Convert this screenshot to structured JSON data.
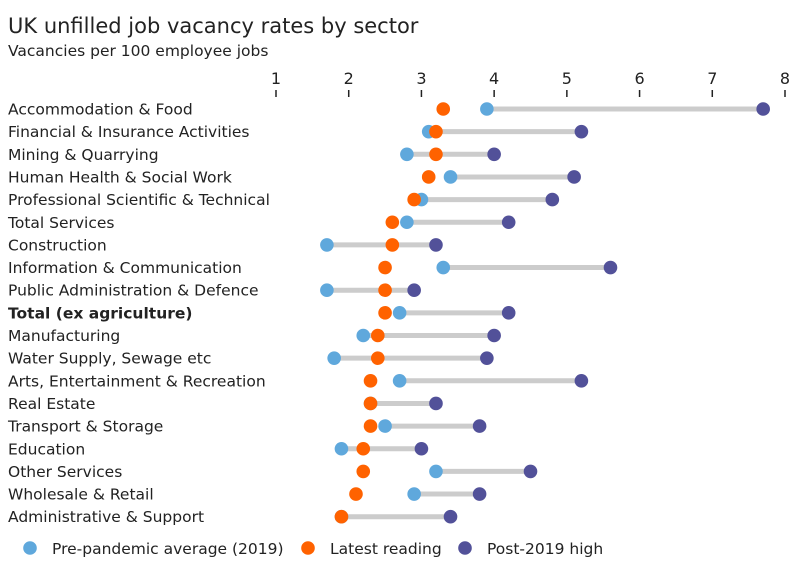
{
  "chart_data": {
    "type": "dot",
    "title": "UK unfilled job vacancy rates by sector",
    "subtitle": "Vacancies per 100 employee jobs",
    "xlim": [
      1,
      8
    ],
    "xticks": [
      "1",
      "2",
      "3",
      "4",
      "5",
      "6",
      "7",
      "8"
    ],
    "legend_position": "bottom",
    "grid": false,
    "categories": [
      "Accommodation & Food",
      "Financial & Insurance Activities",
      "Mining & Quarrying",
      "Human Health & Social Work",
      "Professional Scientific & Technical",
      "Total Services",
      "Construction",
      "Information & Communication",
      "Public Administration & Defence",
      "Total (ex agriculture)",
      "Manufacturing",
      "Water Supply, Sewage etc",
      "Arts, Entertainment & Recreation",
      "Real Estate",
      "Transport & Storage",
      "Education",
      "Other Services",
      "Wholesale & Retail",
      "Administrative & Support"
    ],
    "bold_category": "Total (ex agriculture)",
    "series": [
      {
        "name": "Pre-pandemic average (2019)",
        "color": "#5fa8dc",
        "values": [
          3.9,
          3.1,
          2.8,
          3.4,
          3.0,
          2.8,
          1.7,
          3.3,
          1.7,
          2.7,
          2.2,
          1.8,
          2.7,
          2.3,
          2.5,
          1.9,
          3.2,
          2.9,
          1.9
        ]
      },
      {
        "name": "Latest reading",
        "color": "#ff6200",
        "values": [
          3.3,
          3.2,
          3.2,
          3.1,
          2.9,
          2.6,
          2.6,
          2.5,
          2.5,
          2.5,
          2.4,
          2.4,
          2.3,
          2.3,
          2.3,
          2.2,
          2.2,
          2.1,
          1.9
        ]
      },
      {
        "name": "Post-2019 high",
        "color": "#525199",
        "values": [
          7.7,
          5.2,
          4.0,
          5.1,
          4.8,
          4.2,
          3.2,
          5.6,
          2.9,
          4.2,
          4.0,
          3.9,
          5.2,
          3.2,
          3.8,
          3.0,
          4.5,
          3.8,
          3.4
        ]
      }
    ],
    "range_bar_color": "#cccccc"
  }
}
